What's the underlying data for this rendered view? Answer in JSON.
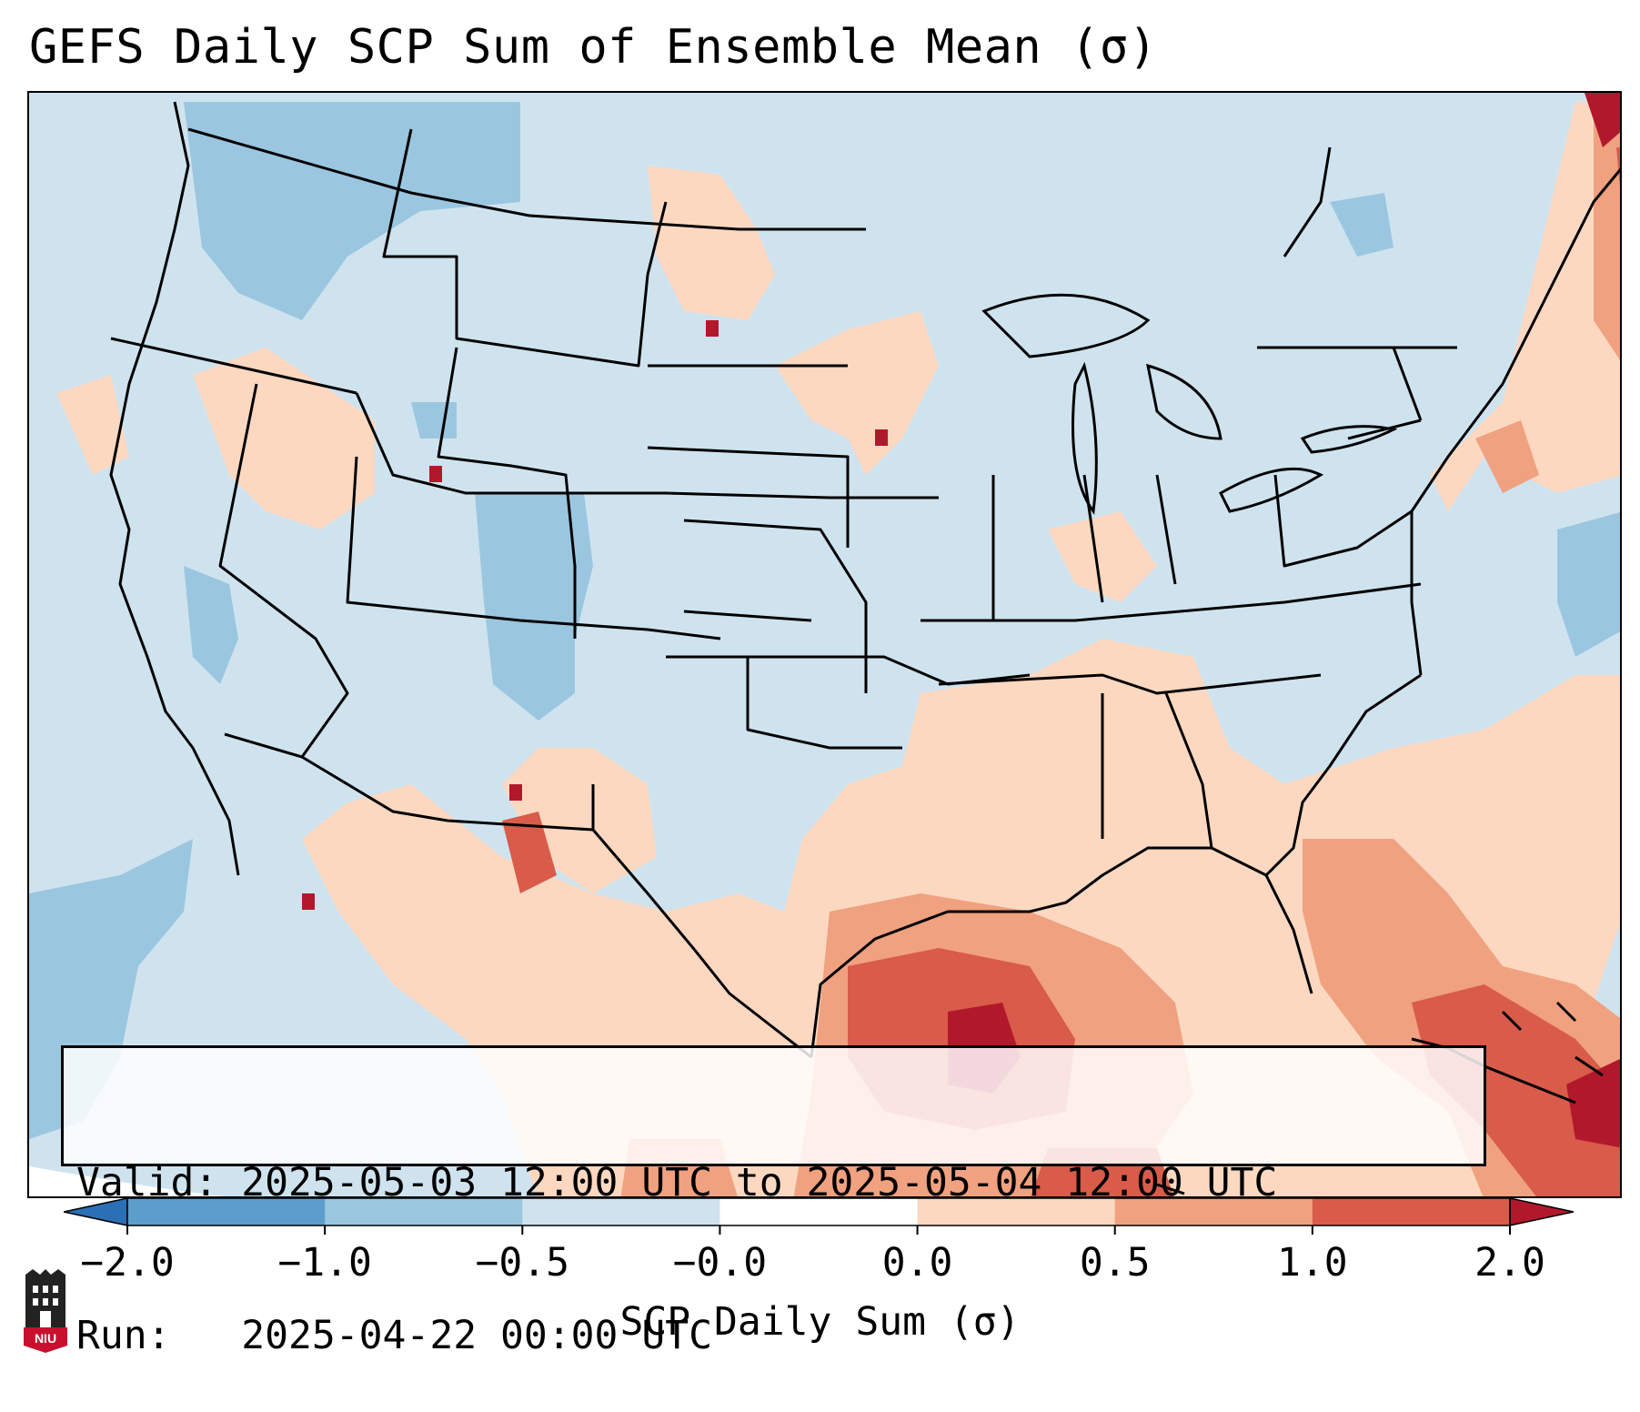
{
  "title": "GEFS Daily SCP Sum of Ensemble Mean (σ)",
  "info": {
    "valid_line": "Valid: 2025-05-03 12:00 UTC to 2025-05-04 12:00 UTC",
    "run_line": "Run:   2025-04-22 00:00 UTC"
  },
  "colorbar": {
    "label": "SCP Daily Sum (σ)",
    "tick_labels": [
      "−2.0",
      "−1.0",
      "−0.5",
      "−0.0",
      "0.0",
      "0.5",
      "1.0",
      "2.0"
    ],
    "bin_colors": [
      "#2b6fb4",
      "#5c9dcb",
      "#9bc6e0",
      "#cfe3ef",
      "#ffffff",
      "#fcd8c1",
      "#f0a17f",
      "#d95b4a",
      "#b2182b"
    ],
    "extend": "both"
  },
  "map": {
    "region": "CONUS",
    "shaded_field": "SCP daily sum (sigma)",
    "background_color": "#cfe3ef"
  },
  "logo": {
    "text": "NIU",
    "color": "#c8102e"
  }
}
